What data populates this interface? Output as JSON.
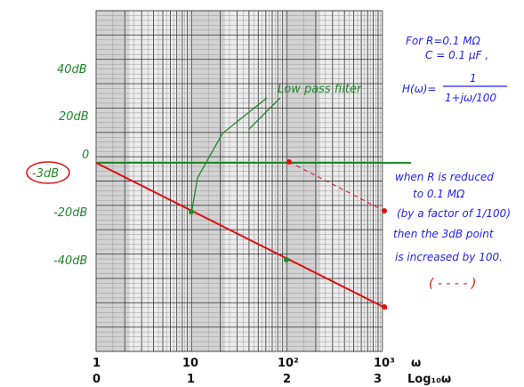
{
  "y_labels": [
    "40dB",
    "20dB",
    "0",
    "-3dB",
    "-20dB",
    "-40dB"
  ],
  "x_labels": {
    "decades": [
      "1",
      "10",
      "10²",
      "10³"
    ],
    "logs": [
      "0",
      "1",
      "2",
      "3"
    ],
    "omega": "ω",
    "log_omega": "Log₁₀ω"
  },
  "annotations": {
    "filter": "Low pass filter",
    "given": [
      "For R=0.1 MΩ",
      "C = 0.1 μF ,"
    ],
    "transfer": {
      "lhs": "H(ω)=",
      "numerator": "1",
      "denominator": "1+jω/100"
    },
    "note": [
      "when R is reduced",
      "to 0.1 MΩ",
      "(by a factor of 1/100)",
      "then the 3dB point",
      "is increased by 100."
    ],
    "legend": "( - - - - )"
  }
}
